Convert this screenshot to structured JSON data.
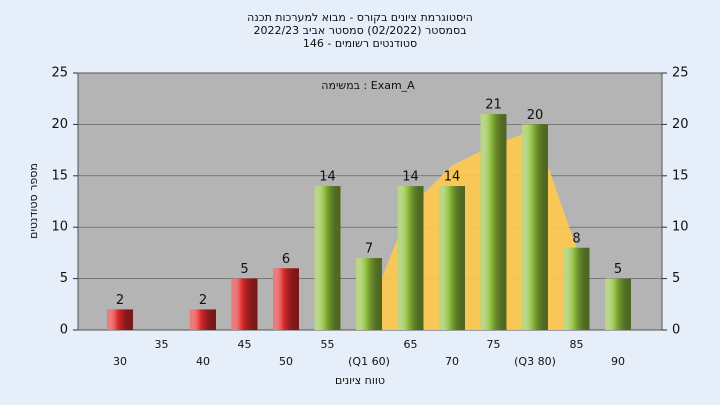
{
  "chart_data": {
    "type": "bar",
    "title": "היסטוגרמת ציונים בקורס - מבוא למערכות תכנה",
    "subtitle": "בסמסטר  (02/2022)  סמסטר אביב 2022/23",
    "subtitle2": "סטודנטים רשומים - 146",
    "annotation": "במשימה : Exam_A",
    "y_label": "מספר סטודנטים",
    "x_label": "טווח ציונים",
    "categories": [
      "30",
      "35",
      "40",
      "45",
      "50",
      "55",
      "(Q1 60)",
      "65",
      "70",
      "75",
      "(Q3 80)",
      "85",
      "90"
    ],
    "values": [
      2,
      null,
      2,
      5,
      6,
      14,
      7,
      14,
      14,
      21,
      20,
      8,
      5
    ],
    "colors": [
      "#e02b2b",
      "#e02b2b",
      "#e02b2b",
      "#e02b2b",
      "#e02b2b",
      "#8fbe3c",
      "#8fbe3c",
      "#8fbe3c",
      "#8fbe3c",
      "#8fbe3c",
      "#8fbe3c",
      "#8fbe3c",
      "#8fbe3c"
    ],
    "area_values": [
      null,
      null,
      null,
      null,
      null,
      null,
      2,
      12,
      16,
      18,
      19.5,
      8,
      null
    ],
    "area_color": "#ffc94d",
    "ylim": [
      0,
      25
    ],
    "yticks": [
      0,
      5,
      10,
      15,
      20,
      25
    ],
    "y2lim": [
      0,
      25
    ],
    "y2ticks": [
      0,
      5,
      10,
      15,
      20,
      25
    ],
    "grid": true
  }
}
